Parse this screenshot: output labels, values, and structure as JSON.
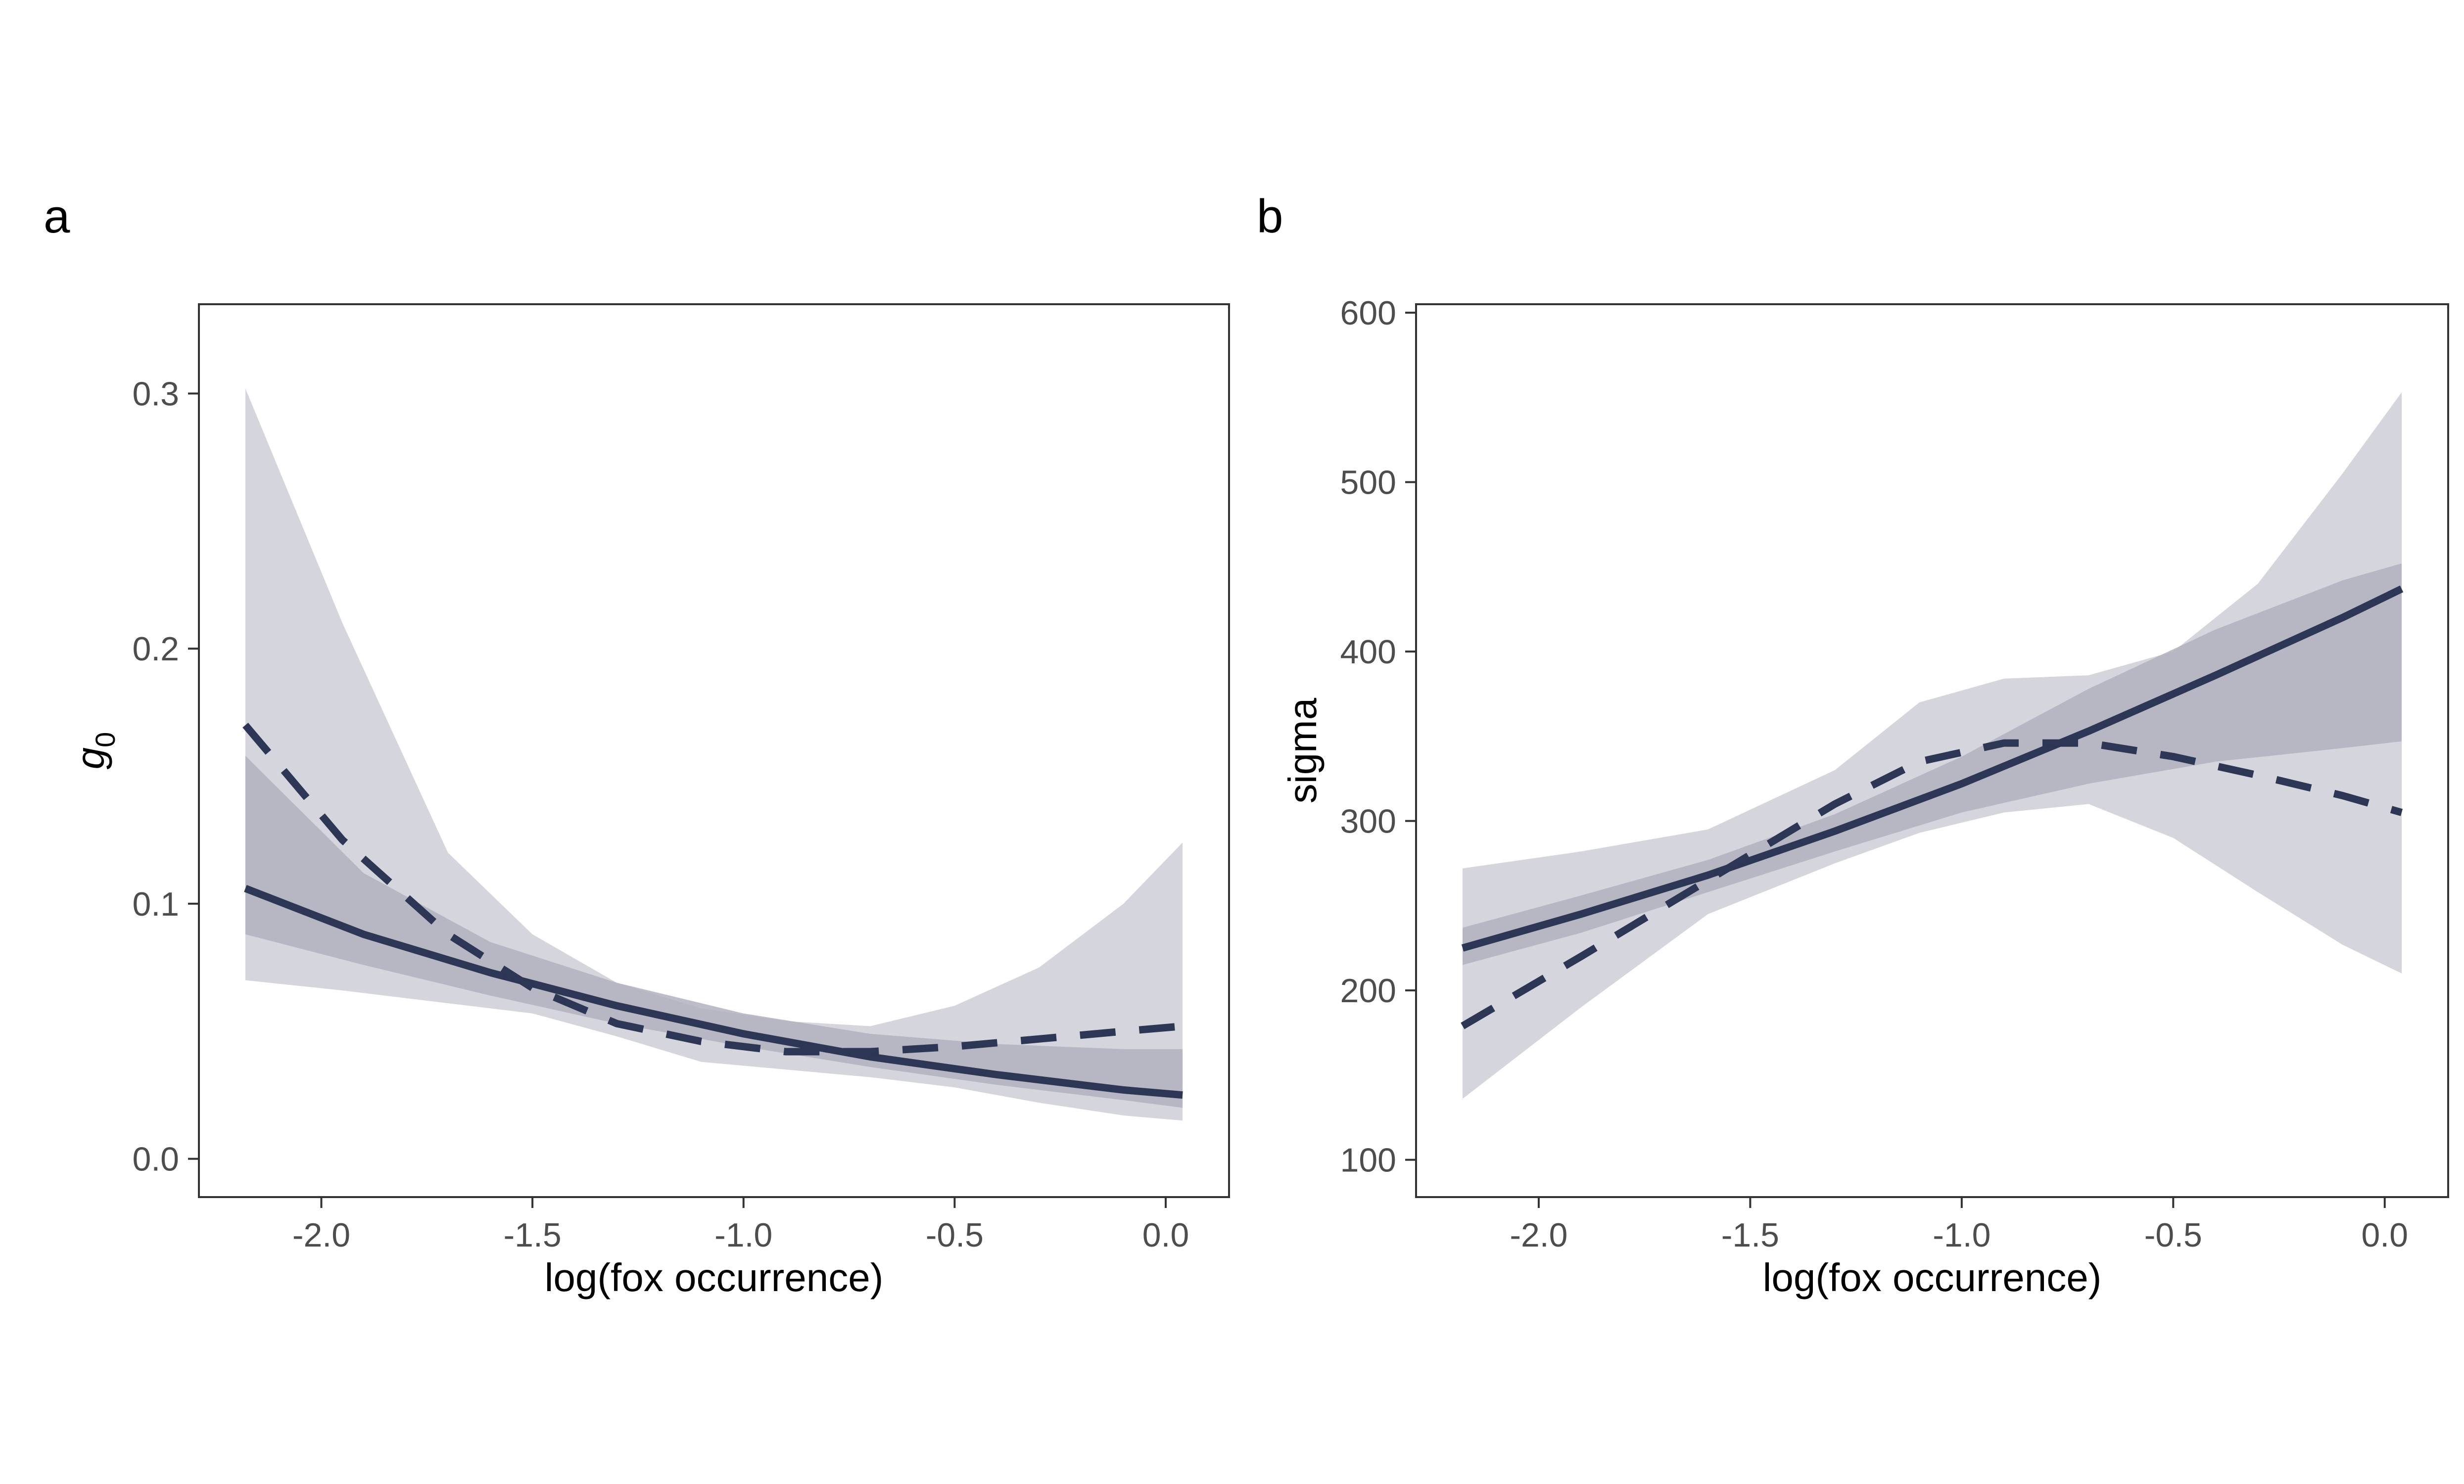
{
  "colors": {
    "line": "#2d3654",
    "band_outer": "#d5d6dd",
    "band_inner": "#b0b2be",
    "frame": "#333333",
    "tick_text": "#4d4d4d"
  },
  "chart_data": [
    {
      "type": "line",
      "panel_label": "a",
      "xlabel": "log(fox occurrence)",
      "ylabel_main": "g",
      "ylabel_sub": "0",
      "xlim": [
        -2.29,
        0.15
      ],
      "ylim": [
        -0.015,
        0.335
      ],
      "xticks": [
        -2.0,
        -1.5,
        -1.0,
        -0.5,
        0.0
      ],
      "xtick_labels": [
        "-2.0",
        "-1.5",
        "-1.0",
        "-0.5",
        "0.0"
      ],
      "yticks": [
        0.0,
        0.1,
        0.2,
        0.3
      ],
      "ytick_labels": [
        "0.0",
        "0.1",
        "0.2",
        "0.3"
      ],
      "grid": false,
      "series": [
        {
          "style": "solid",
          "x": [
            -2.18,
            -1.9,
            -1.6,
            -1.3,
            -1.0,
            -0.7,
            -0.4,
            -0.1,
            0.04
          ],
          "y": [
            0.106,
            0.088,
            0.073,
            0.06,
            0.049,
            0.04,
            0.033,
            0.027,
            0.025
          ],
          "lower": [
            0.088,
            0.076,
            0.064,
            0.053,
            0.044,
            0.036,
            0.029,
            0.023,
            0.02
          ],
          "upper": [
            0.158,
            0.112,
            0.085,
            0.069,
            0.057,
            0.049,
            0.045,
            0.043,
            0.043
          ]
        },
        {
          "style": "dashed",
          "x": [
            -2.18,
            -1.95,
            -1.7,
            -1.5,
            -1.3,
            -1.1,
            -0.9,
            -0.7,
            -0.5,
            -0.3,
            -0.1,
            0.04
          ],
          "y": [
            0.17,
            0.125,
            0.088,
            0.067,
            0.053,
            0.046,
            0.042,
            0.042,
            0.044,
            0.047,
            0.05,
            0.052
          ],
          "lower": [
            0.07,
            0.066,
            0.061,
            0.057,
            0.048,
            0.038,
            0.035,
            0.032,
            0.028,
            0.022,
            0.017,
            0.015
          ],
          "upper": [
            0.302,
            0.21,
            0.12,
            0.088,
            0.069,
            0.059,
            0.054,
            0.052,
            0.06,
            0.075,
            0.1,
            0.124
          ]
        }
      ]
    },
    {
      "type": "line",
      "panel_label": "b",
      "xlabel": "log(fox occurrence)",
      "ylabel_main": "sigma",
      "ylabel_sub": "",
      "xlim": [
        -2.29,
        0.15
      ],
      "ylim": [
        78,
        605
      ],
      "xticks": [
        -2.0,
        -1.5,
        -1.0,
        -0.5,
        0.0
      ],
      "xtick_labels": [
        "-2.0",
        "-1.5",
        "-1.0",
        "-0.5",
        "0.0"
      ],
      "yticks": [
        100,
        200,
        300,
        400,
        500,
        600
      ],
      "ytick_labels": [
        "100",
        "200",
        "300",
        "400",
        "500",
        "600"
      ],
      "grid": false,
      "series": [
        {
          "style": "solid",
          "x": [
            -2.18,
            -1.9,
            -1.6,
            -1.3,
            -1.0,
            -0.7,
            -0.4,
            -0.1,
            0.04
          ],
          "y": [
            225,
            245,
            268,
            294,
            322,
            353,
            386,
            420,
            437
          ],
          "lower": [
            215,
            234,
            258,
            282,
            305,
            322,
            335,
            343,
            347
          ],
          "upper": [
            237,
            256,
            277,
            304,
            338,
            378,
            413,
            442,
            452
          ]
        },
        {
          "style": "dashed",
          "x": [
            -2.18,
            -1.9,
            -1.6,
            -1.3,
            -1.1,
            -0.9,
            -0.7,
            -0.5,
            -0.3,
            -0.1,
            0.04
          ],
          "y": [
            179,
            220,
            265,
            310,
            335,
            346,
            346,
            338,
            327,
            315,
            305
          ],
          "lower": [
            136,
            190,
            245,
            275,
            293,
            305,
            310,
            290,
            258,
            227,
            210
          ],
          "upper": [
            272,
            282,
            295,
            330,
            370,
            384,
            386,
            400,
            440,
            505,
            553
          ]
        }
      ]
    }
  ]
}
